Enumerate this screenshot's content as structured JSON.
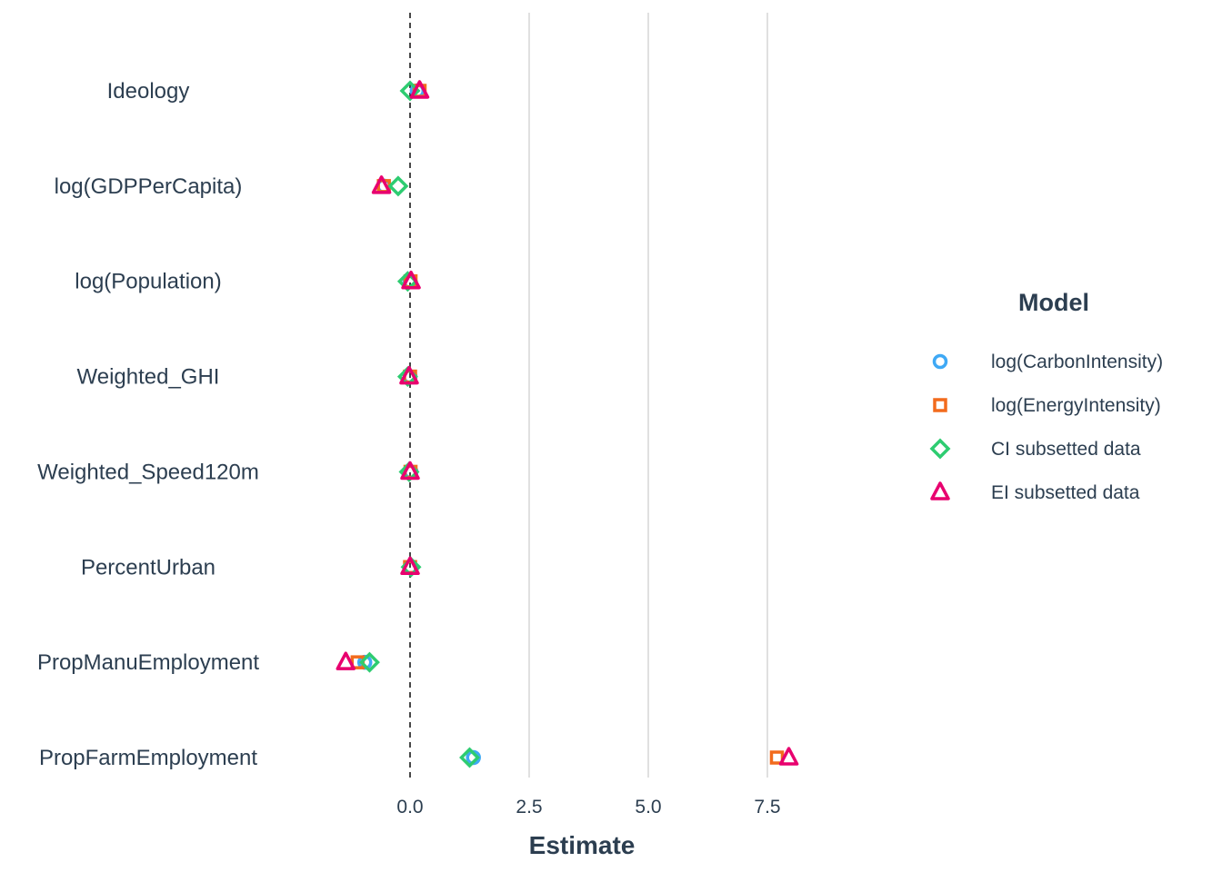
{
  "chart_data": {
    "type": "scatter",
    "subtype": "coefficient-plot",
    "xlabel": "Estimate",
    "ylabel": "",
    "xlim": [
      -2.4,
      9.2
    ],
    "x_ticks": [
      0.0,
      2.5,
      5.0,
      7.5
    ],
    "x_tick_labels": [
      "0.0",
      "2.5",
      "5.0",
      "7.5"
    ],
    "reference_line": {
      "x": 0,
      "style": "dashed"
    },
    "grid": "vertical major lines",
    "terms": [
      "Ideology",
      "log(GDPPerCapita)",
      "log(Population)",
      "Weighted_GHI",
      "Weighted_Speed120m",
      "PercentUrban",
      "PropManuEmployment",
      "PropFarmEmployment"
    ],
    "legend": {
      "title": "Model",
      "position": "right"
    },
    "series": [
      {
        "name": "log(CarbonIntensity)",
        "shape": "circle",
        "color": "#3fa9f5",
        "values": [
          0.15,
          -0.55,
          0.0,
          0.0,
          0.02,
          0.01,
          -0.95,
          1.33
        ]
      },
      {
        "name": "log(EnergyIntensity)",
        "shape": "square",
        "color": "#f26b1d",
        "values": [
          0.2,
          -0.55,
          0.01,
          0.0,
          0.01,
          0.0,
          -1.1,
          7.7
        ]
      },
      {
        "name": "CI subsetted data",
        "shape": "diamond",
        "color": "#2ecc71",
        "values": [
          0.0,
          -0.25,
          -0.05,
          -0.05,
          -0.02,
          0.02,
          -0.85,
          1.25
        ]
      },
      {
        "name": "EI subsetted data",
        "shape": "triangle",
        "color": "#e8006f",
        "values": [
          0.2,
          -0.6,
          0.02,
          -0.02,
          0.0,
          0.0,
          -1.35,
          7.95
        ]
      }
    ]
  }
}
